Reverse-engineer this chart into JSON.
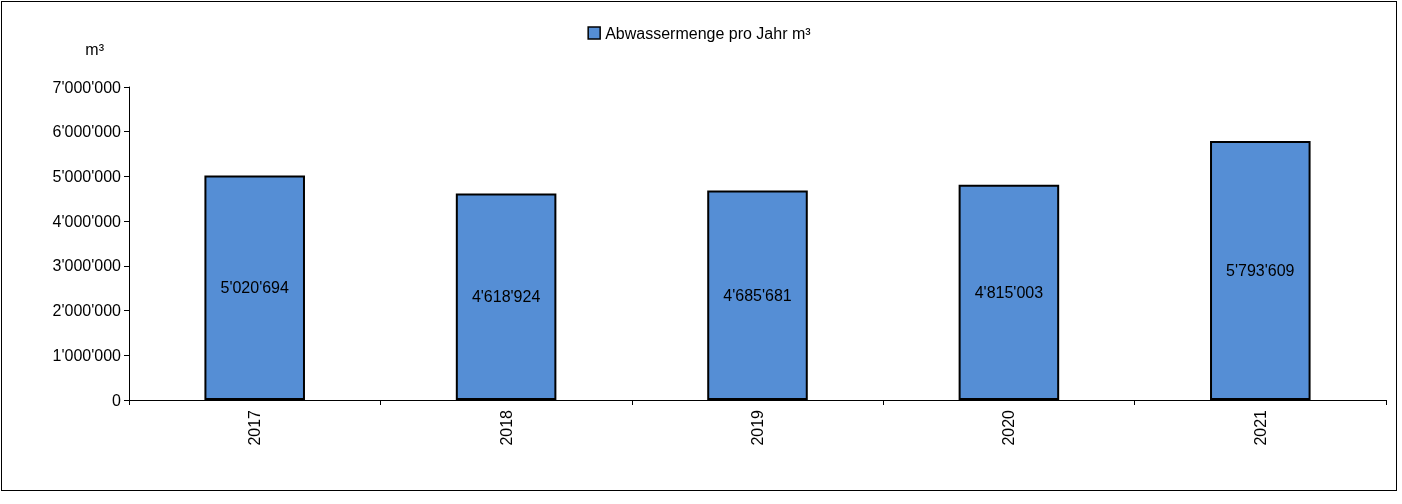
{
  "chart_data": {
    "type": "bar",
    "ylabel": "m³",
    "categories": [
      "2017",
      "2018",
      "2019",
      "2020",
      "2021"
    ],
    "series": [
      {
        "name": "Abwassermenge pro Jahr m³",
        "color": "#558ed5",
        "values": [
          5020694,
          4618924,
          4685681,
          4815003,
          5793609
        ],
        "value_labels": [
          "5'020'694",
          "4'618'924",
          "4'685'681",
          "4'815'003",
          "5'793'609"
        ]
      }
    ],
    "ylim": [
      0,
      7000000
    ],
    "yticks": [
      0,
      {
        "value": 1000000,
        "label": "1'000'000"
      },
      {
        "value": 2000000,
        "label": "2'000'000"
      },
      {
        "value": 3000000,
        "label": "3'000'000"
      },
      {
        "value": 4000000,
        "label": "4'000'000"
      },
      {
        "value": 5000000,
        "label": "5'000'000"
      },
      {
        "value": 6000000,
        "label": "6'000'000"
      },
      {
        "value": 7000000,
        "label": "7'000'000"
      }
    ],
    "legend": "top",
    "grid": false
  }
}
